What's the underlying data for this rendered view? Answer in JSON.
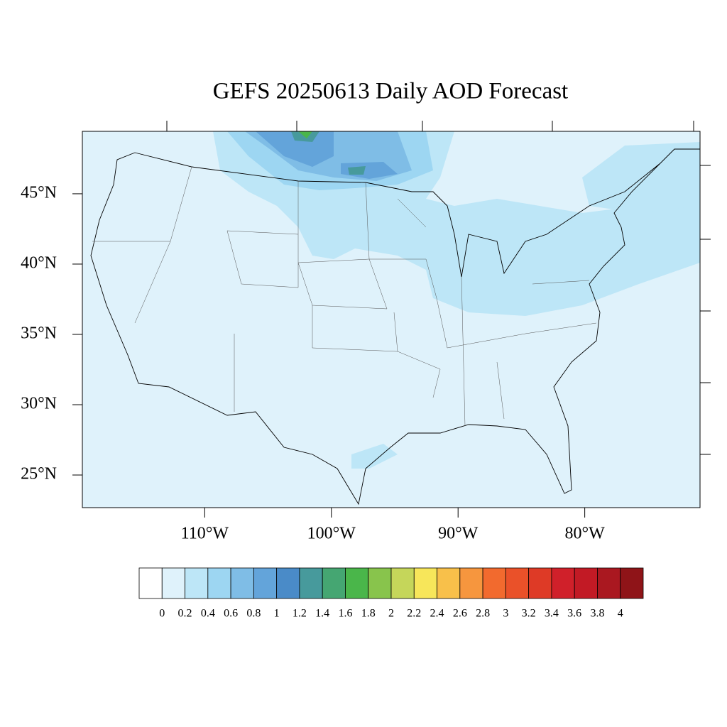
{
  "chart_data": {
    "type": "map",
    "title": "GEFS 20250613 Daily AOD Forecast",
    "xlim": [
      -119.66,
      -70.9
    ],
    "ylim": [
      22.68,
      49.44
    ],
    "xticks": [
      {
        "value": -110,
        "label": "110°W"
      },
      {
        "value": -100,
        "label": "100°W"
      },
      {
        "value": -90,
        "label": "90°W"
      },
      {
        "value": -80,
        "label": "80°W"
      }
    ],
    "yticks": [
      {
        "value": 45,
        "label": "45°N"
      },
      {
        "value": 40,
        "label": "40°N"
      },
      {
        "value": 35,
        "label": "35°N"
      },
      {
        "value": 30,
        "label": "30°N"
      },
      {
        "value": 25,
        "label": "25°N"
      }
    ],
    "colorbar": {
      "levels": [
        0,
        0.2,
        0.4,
        0.6,
        0.8,
        1,
        1.2,
        1.4,
        1.6,
        1.8,
        2,
        2.2,
        2.4,
        2.6,
        2.8,
        3,
        3.2,
        3.4,
        3.6,
        3.8,
        4
      ],
      "colors": [
        "#ffffff",
        "#dff2fb",
        "#bde6f7",
        "#9dd6f2",
        "#7fbde6",
        "#63a4da",
        "#4a8bc8",
        "#479a9c",
        "#45a672",
        "#4ab64a",
        "#88c44c",
        "#c5d65a",
        "#f7e65a",
        "#f8c04a",
        "#f6963e",
        "#f26a2e",
        "#ea5129",
        "#de3a26",
        "#d0202a",
        "#c21a25",
        "#aa1820",
        "#8f1418"
      ]
    }
  }
}
